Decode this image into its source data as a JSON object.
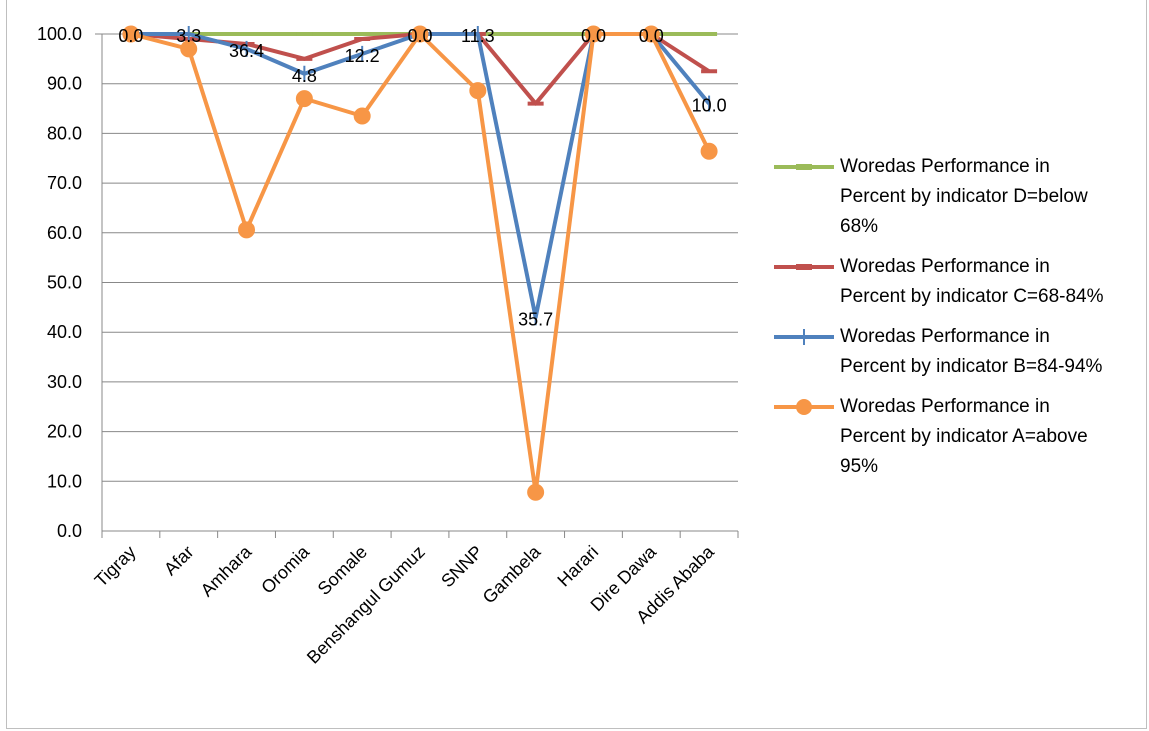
{
  "chart_data": {
    "type": "line",
    "title": "",
    "xlabel": "",
    "ylabel": "",
    "ylim": [
      0,
      100
    ],
    "ytick_step": 10,
    "y_tick_labels": [
      "0.0",
      "10.0",
      "20.0",
      "30.0",
      "40.0",
      "50.0",
      "60.0",
      "70.0",
      "80.0",
      "90.0",
      "100.0"
    ],
    "grid": true,
    "legend_position": "right",
    "categories": [
      "Tigray",
      "Afar",
      "Amhara",
      "Oromia",
      "Somale",
      "Benshangul Gumuz",
      "SNNP",
      "Gambela",
      "Harari",
      "Dire Dawa",
      "Addis Ababa"
    ],
    "series": [
      {
        "name": "Woredas Performance in Percent by indicator D=below 68%",
        "color": "#9bbb59",
        "marker": "dash",
        "values": [
          100,
          100,
          100,
          100,
          100,
          100,
          100,
          100,
          100,
          100,
          100
        ]
      },
      {
        "name": "Woredas Performance in Percent by indicator C=68-84%",
        "color": "#c0504d",
        "marker": "dash",
        "values": [
          100,
          99,
          98,
          95,
          99,
          100,
          100,
          86,
          100,
          100,
          92.5
        ]
      },
      {
        "name": "Woredas Performance in Percent by indicator B=84-94%",
        "color": "#4f81bd",
        "marker": "plus",
        "values": [
          100,
          100,
          97,
          92,
          96,
          100,
          100,
          43,
          100,
          100,
          86
        ]
      },
      {
        "name": "Woredas Performance in Percent by indicator A=above 95%",
        "color": "#f79646",
        "marker": "circle",
        "values": [
          100,
          97,
          60.6,
          87,
          83.5,
          100,
          88.6,
          7.8,
          100,
          100,
          76.4
        ]
      }
    ],
    "data_labels": [
      {
        "category": "Tigray",
        "text": "0.0"
      },
      {
        "category": "Afar",
        "text": "3.3"
      },
      {
        "category": "Amhara",
        "text": "36.4"
      },
      {
        "category": "Oromia",
        "text": "4.8"
      },
      {
        "category": "Somale",
        "text": "12.2"
      },
      {
        "category": "Benshangul Gumuz",
        "text": "0.0"
      },
      {
        "category": "SNNP",
        "text": "11.3"
      },
      {
        "category": "Gambela",
        "text": "35.7"
      },
      {
        "category": "Harari",
        "text": "0.0"
      },
      {
        "category": "Dire Dawa",
        "text": "0.0"
      },
      {
        "category": "Addis Ababa",
        "text": "10.0"
      }
    ]
  },
  "legend": {
    "items": [
      {
        "label": "Woredas Performance in Percent by indicator D=below 68%",
        "color": "#9bbb59",
        "marker": "dash"
      },
      {
        "label": "Woredas Performance in Percent by indicator C=68-84%",
        "color": "#c0504d",
        "marker": "dash"
      },
      {
        "label": "Woredas Performance in Percent by indicator B=84-94%",
        "color": "#4f81bd",
        "marker": "plus"
      },
      {
        "label": "Woredas Performance in Percent by indicator A=above 95%",
        "color": "#f79646",
        "marker": "circle"
      }
    ]
  }
}
